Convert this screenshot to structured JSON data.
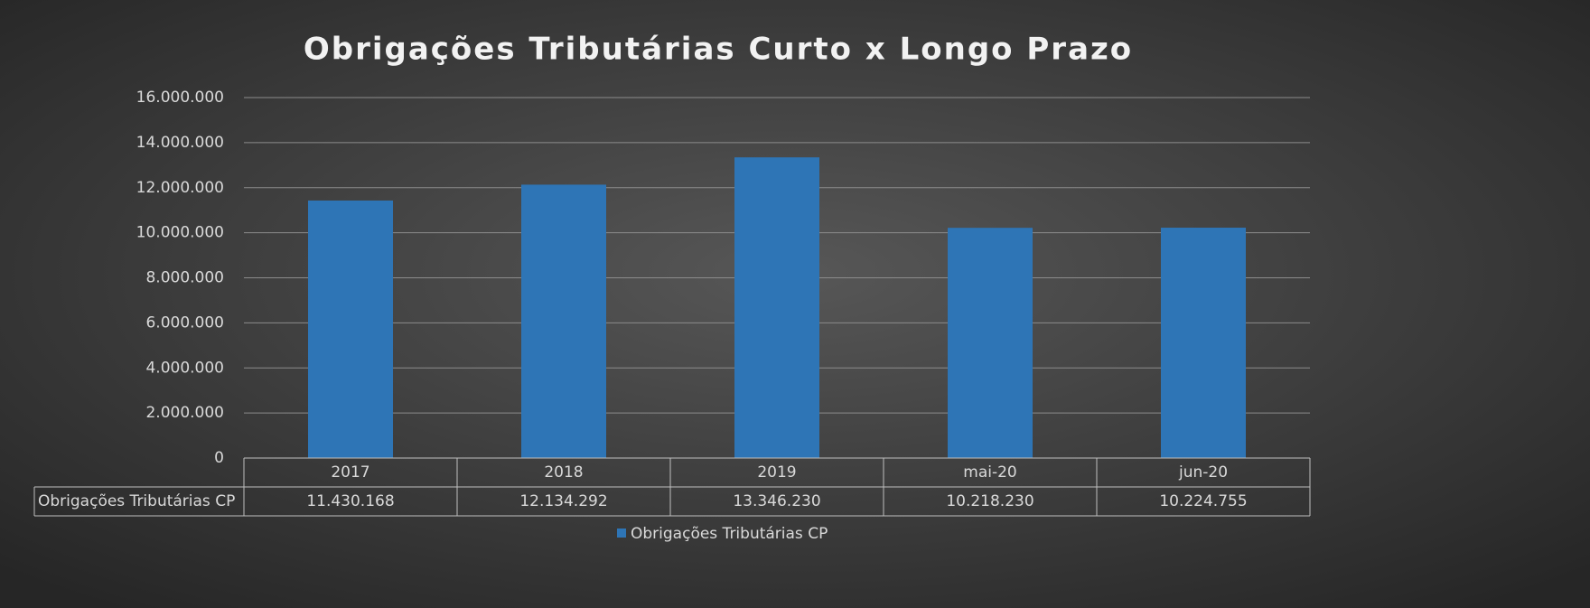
{
  "chart_data": {
    "type": "bar",
    "title": "Obrigações Tributárias Curto x Longo Prazo",
    "categories": [
      "2017",
      "2018",
      "2019",
      "mai-20",
      "jun-20"
    ],
    "series": [
      {
        "name": "Obrigações Tributárias CP",
        "color": "#2e75b6",
        "values": [
          11430168,
          12134292,
          13346230,
          10218230,
          10224755
        ],
        "value_labels": [
          "11.430.168",
          "12.134.292",
          "13.346.230",
          "10.218.230",
          "10.224.755"
        ]
      }
    ],
    "ylim": [
      0,
      16000000
    ],
    "yticks": [
      0,
      {
        "value": 2000000,
        "label": "2.000.000"
      },
      {
        "value": 4000000,
        "label": "4.000.000"
      },
      {
        "value": 6000000,
        "label": "6.000.000"
      },
      {
        "value": 8000000,
        "label": "8.000.000"
      },
      {
        "value": 10000000,
        "label": "10.000.000"
      },
      {
        "value": 12000000,
        "label": "12.000.000"
      },
      {
        "value": 14000000,
        "label": "14.000.000"
      },
      {
        "value": 16000000,
        "label": "16.000.000"
      }
    ],
    "grid": true,
    "legend": "bottom"
  }
}
